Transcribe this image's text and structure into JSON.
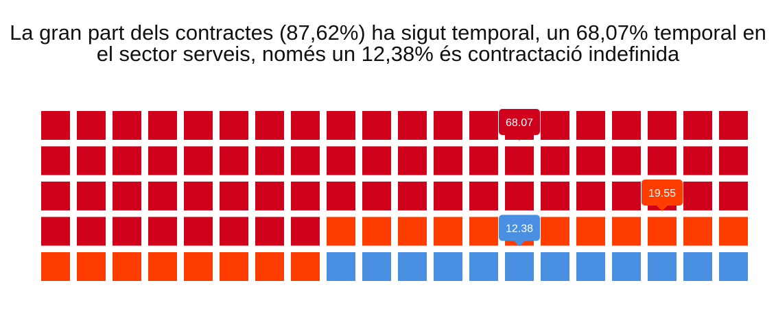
{
  "chart_data": {
    "type": "waffle",
    "title": "La gran part dels contractes (87,62%) ha sigut temporal, un 68,07% temporal en el sector serveis, només un 12,38% és contractació indefinida",
    "grid": {
      "rows": 5,
      "cols": 20
    },
    "series": [
      {
        "value": 68.07,
        "label": "68.07",
        "cells": 68,
        "color": "#d0021b"
      },
      {
        "value": 19.55,
        "label": "19.55",
        "cells": 20,
        "color": "#ff3d00"
      },
      {
        "value": 12.38,
        "label": "12.38",
        "cells": 12,
        "color": "#4a90e2"
      }
    ]
  }
}
